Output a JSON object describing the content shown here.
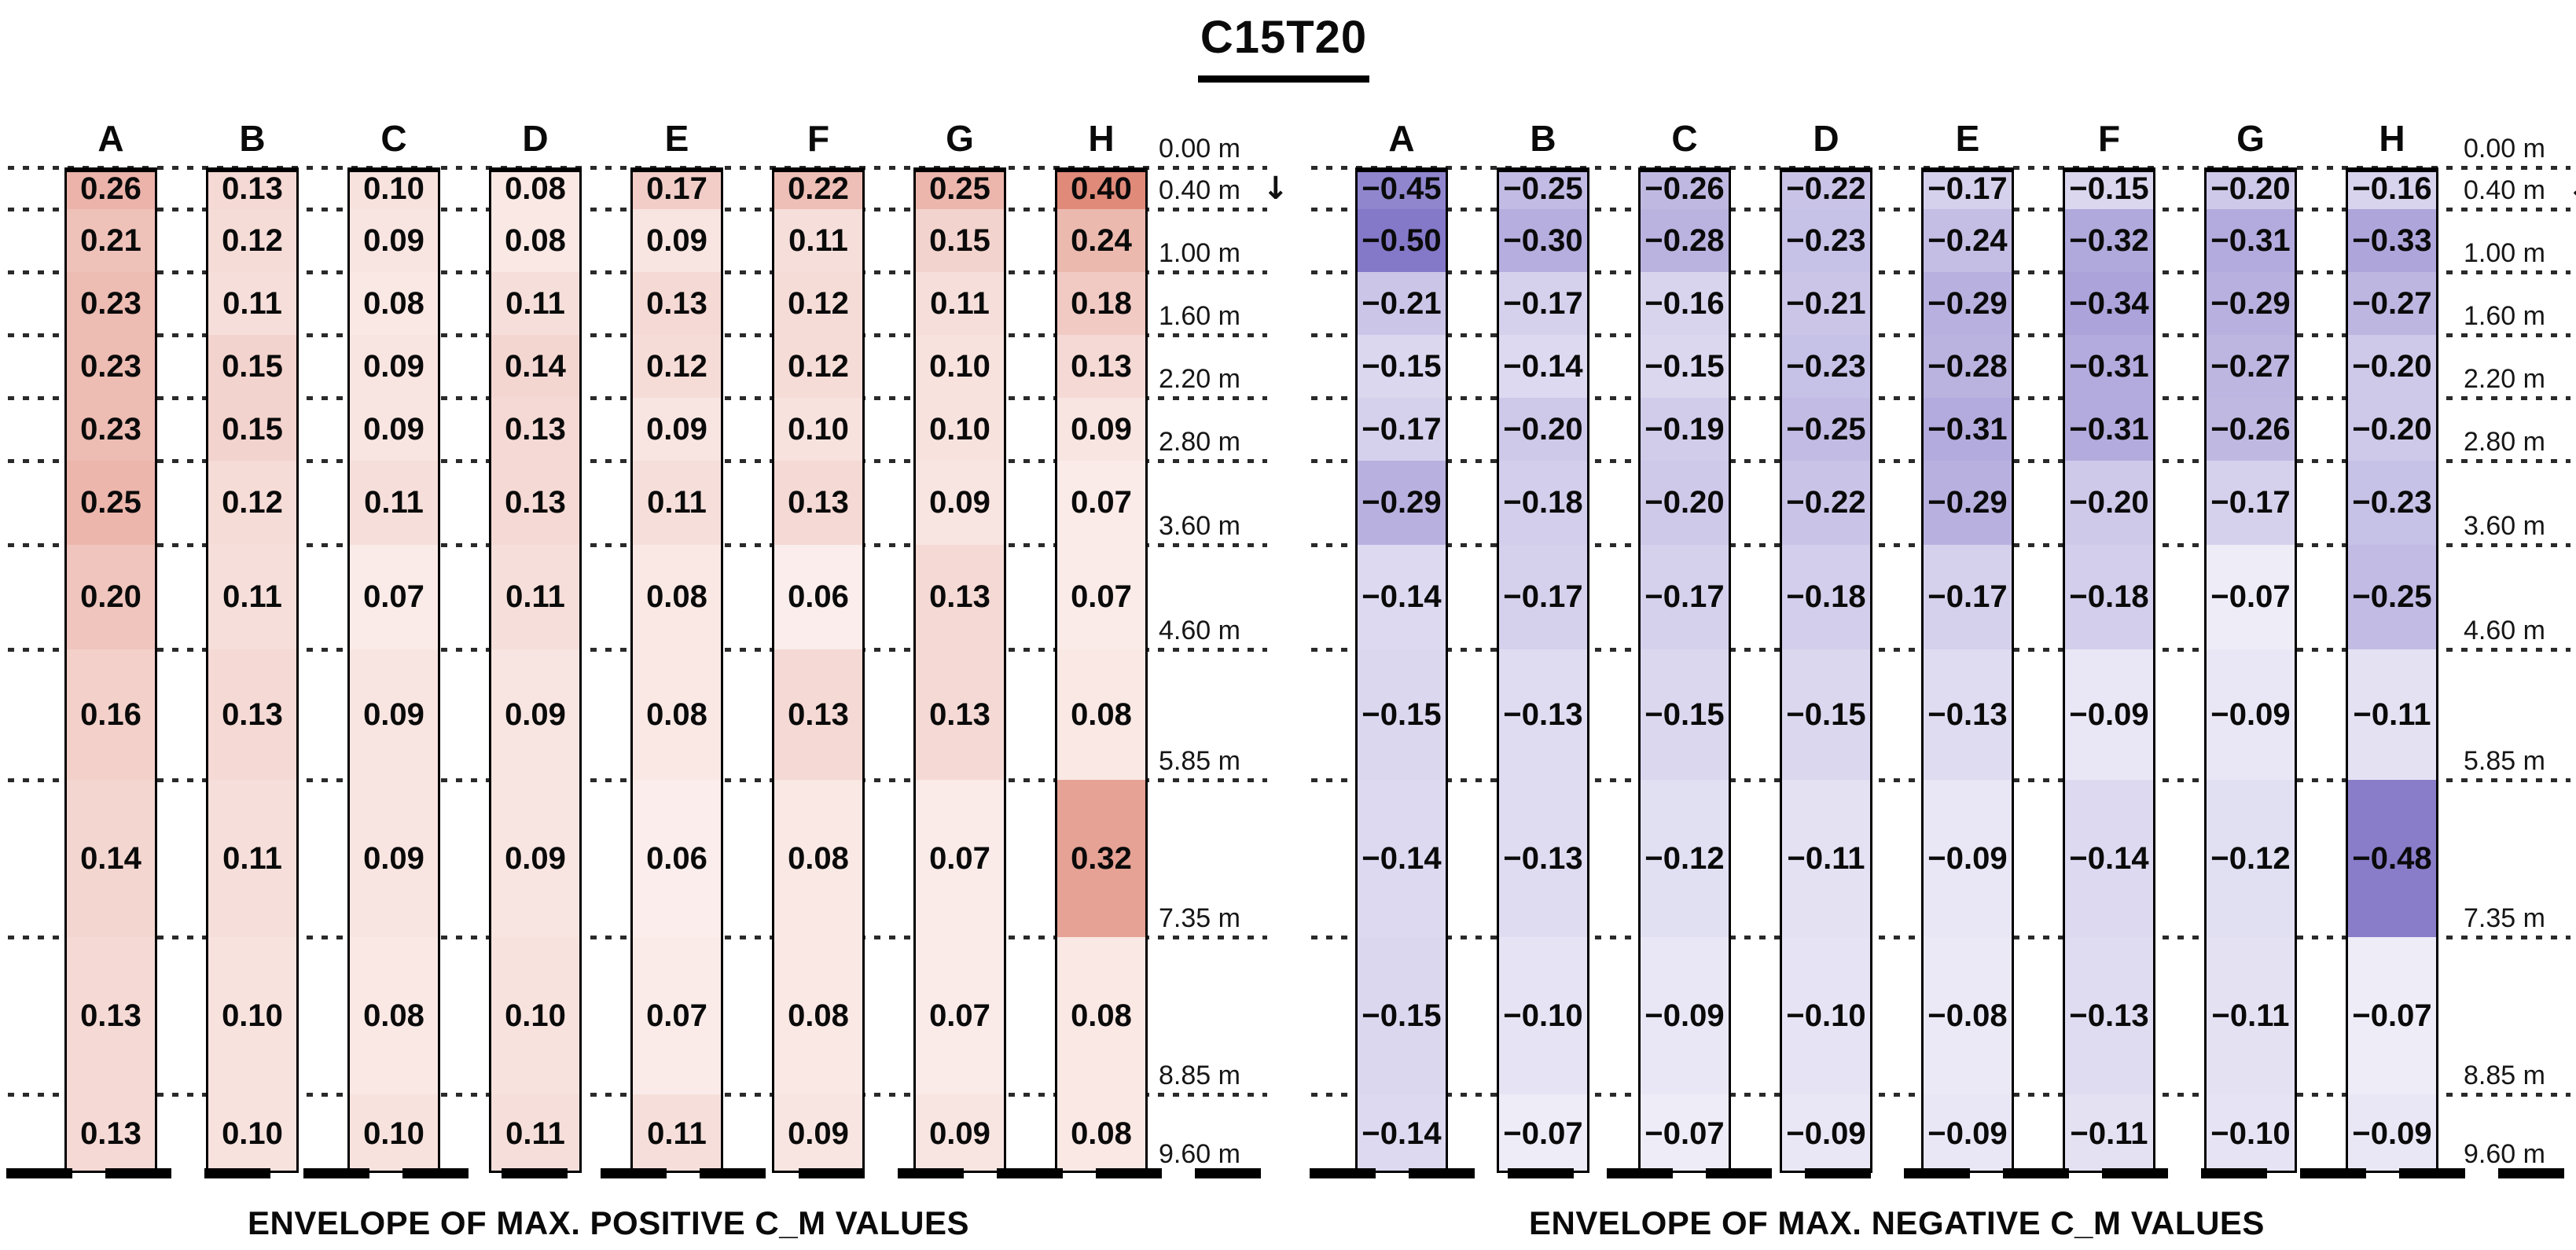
{
  "title": "C15T20",
  "icons": {
    "down_arrow": "↓"
  },
  "colors": {
    "zero": "#ffffff",
    "positive_max": "#d86d59",
    "negative_max": "#8478c8",
    "border": "#000000",
    "text": "#0a0a0a"
  },
  "chart_data": [
    {
      "type": "heatmap",
      "title": "C15T20",
      "caption": "ENVELOPE OF MAX. POSITIVE C_M VALUES",
      "columns": [
        "A",
        "B",
        "C",
        "D",
        "E",
        "F",
        "G",
        "H"
      ],
      "depth_boundaries_m": [
        0.0,
        0.4,
        1.0,
        1.6,
        2.2,
        2.8,
        3.6,
        4.6,
        5.85,
        7.35,
        8.85,
        9.6
      ],
      "depth_tick_labels": [
        "0.00 m",
        "0.40 m",
        "1.00 m",
        "1.60 m",
        "2.20 m",
        "2.80 m",
        "3.60 m",
        "4.60 m",
        "5.85 m",
        "7.35 m",
        "8.85 m",
        "9.60 m"
      ],
      "arrow_at_label": "0.40 m",
      "colormap": {
        "zero": "#ffffff",
        "max": "#d86d59",
        "abs_max": 0.5
      },
      "rows": [
        [
          0.26,
          0.13,
          0.1,
          0.08,
          0.17,
          0.22,
          0.25,
          0.4
        ],
        [
          0.21,
          0.12,
          0.09,
          0.08,
          0.09,
          0.11,
          0.15,
          0.24
        ],
        [
          0.23,
          0.11,
          0.08,
          0.11,
          0.13,
          0.12,
          0.11,
          0.18
        ],
        [
          0.23,
          0.15,
          0.09,
          0.14,
          0.12,
          0.12,
          0.1,
          0.13
        ],
        [
          0.23,
          0.15,
          0.09,
          0.13,
          0.09,
          0.1,
          0.1,
          0.09
        ],
        [
          0.25,
          0.12,
          0.11,
          0.13,
          0.11,
          0.13,
          0.09,
          0.07
        ],
        [
          0.2,
          0.11,
          0.07,
          0.11,
          0.08,
          0.06,
          0.13,
          0.07
        ],
        [
          0.16,
          0.13,
          0.09,
          0.09,
          0.08,
          0.13,
          0.13,
          0.08
        ],
        [
          0.14,
          0.11,
          0.09,
          0.09,
          0.06,
          0.08,
          0.07,
          0.32
        ],
        [
          0.13,
          0.1,
          0.08,
          0.1,
          0.07,
          0.08,
          0.07,
          0.08
        ],
        [
          0.13,
          0.1,
          0.1,
          0.11,
          0.11,
          0.09,
          0.09,
          0.08
        ]
      ]
    },
    {
      "type": "heatmap",
      "title": "C15T20",
      "caption": "ENVELOPE OF MAX. NEGATIVE C_M VALUES",
      "columns": [
        "A",
        "B",
        "C",
        "D",
        "E",
        "F",
        "G",
        "H"
      ],
      "depth_boundaries_m": [
        0.0,
        0.4,
        1.0,
        1.6,
        2.2,
        2.8,
        3.6,
        4.6,
        5.85,
        7.35,
        8.85,
        9.6
      ],
      "depth_tick_labels": [
        "0.00 m",
        "0.40 m",
        "1.00 m",
        "1.60 m",
        "2.20 m",
        "2.80 m",
        "3.60 m",
        "4.60 m",
        "5.85 m",
        "7.35 m",
        "8.85 m",
        "9.60 m"
      ],
      "arrow_at_label": "0.40 m",
      "colormap": {
        "zero": "#ffffff",
        "max": "#8478c8",
        "abs_max": 0.5
      },
      "rows": [
        [
          -0.45,
          -0.25,
          -0.26,
          -0.22,
          -0.17,
          -0.15,
          -0.2,
          -0.16
        ],
        [
          -0.5,
          -0.3,
          -0.28,
          -0.23,
          -0.24,
          -0.32,
          -0.31,
          -0.33
        ],
        [
          -0.21,
          -0.17,
          -0.16,
          -0.21,
          -0.29,
          -0.34,
          -0.29,
          -0.27
        ],
        [
          -0.15,
          -0.14,
          -0.15,
          -0.23,
          -0.28,
          -0.31,
          -0.27,
          -0.2
        ],
        [
          -0.17,
          -0.2,
          -0.19,
          -0.25,
          -0.31,
          -0.31,
          -0.26,
          -0.2
        ],
        [
          -0.29,
          -0.18,
          -0.2,
          -0.22,
          -0.29,
          -0.2,
          -0.17,
          -0.23
        ],
        [
          -0.14,
          -0.17,
          -0.17,
          -0.18,
          -0.17,
          -0.18,
          -0.07,
          -0.25
        ],
        [
          -0.15,
          -0.13,
          -0.15,
          -0.15,
          -0.13,
          -0.09,
          -0.09,
          -0.11
        ],
        [
          -0.14,
          -0.13,
          -0.12,
          -0.11,
          -0.09,
          -0.14,
          -0.12,
          -0.48
        ],
        [
          -0.15,
          -0.1,
          -0.09,
          -0.1,
          -0.08,
          -0.13,
          -0.11,
          -0.07
        ],
        [
          -0.14,
          -0.07,
          -0.07,
          -0.09,
          -0.09,
          -0.11,
          -0.1,
          -0.09
        ]
      ]
    }
  ]
}
